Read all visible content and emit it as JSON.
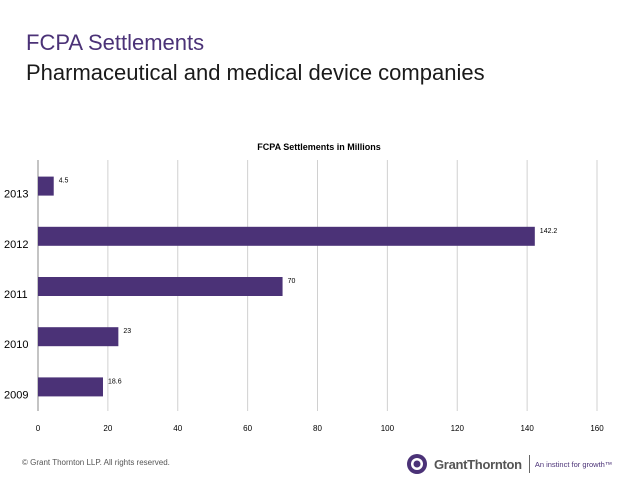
{
  "slide": {
    "title": "FCPA Settlements",
    "subtitle": "Pharmaceutical and medical device companies",
    "footer": "© Grant Thornton LLP.  All rights reserved.",
    "logo_name": "GrantThornton",
    "logo_tagline": "An instinct for growth™"
  },
  "colors": {
    "bar": "#4b3277",
    "title": "#4b3277",
    "grid": "#d0d0d0"
  },
  "chart_data": {
    "type": "bar",
    "orientation": "horizontal",
    "title": "FCPA Settlements in Millions",
    "categories": [
      "2013",
      "2012",
      "2011",
      "2010",
      "2009"
    ],
    "values": [
      4.5,
      142.2,
      70,
      23,
      18.6
    ],
    "value_labels": [
      "4.5",
      "142.2",
      "70",
      "23",
      "18.6"
    ],
    "xlim": [
      0,
      160
    ],
    "xticks": [
      "0",
      "20",
      "40",
      "60",
      "80",
      "100",
      "120",
      "140",
      "160"
    ],
    "grid": true,
    "legend": "none"
  }
}
